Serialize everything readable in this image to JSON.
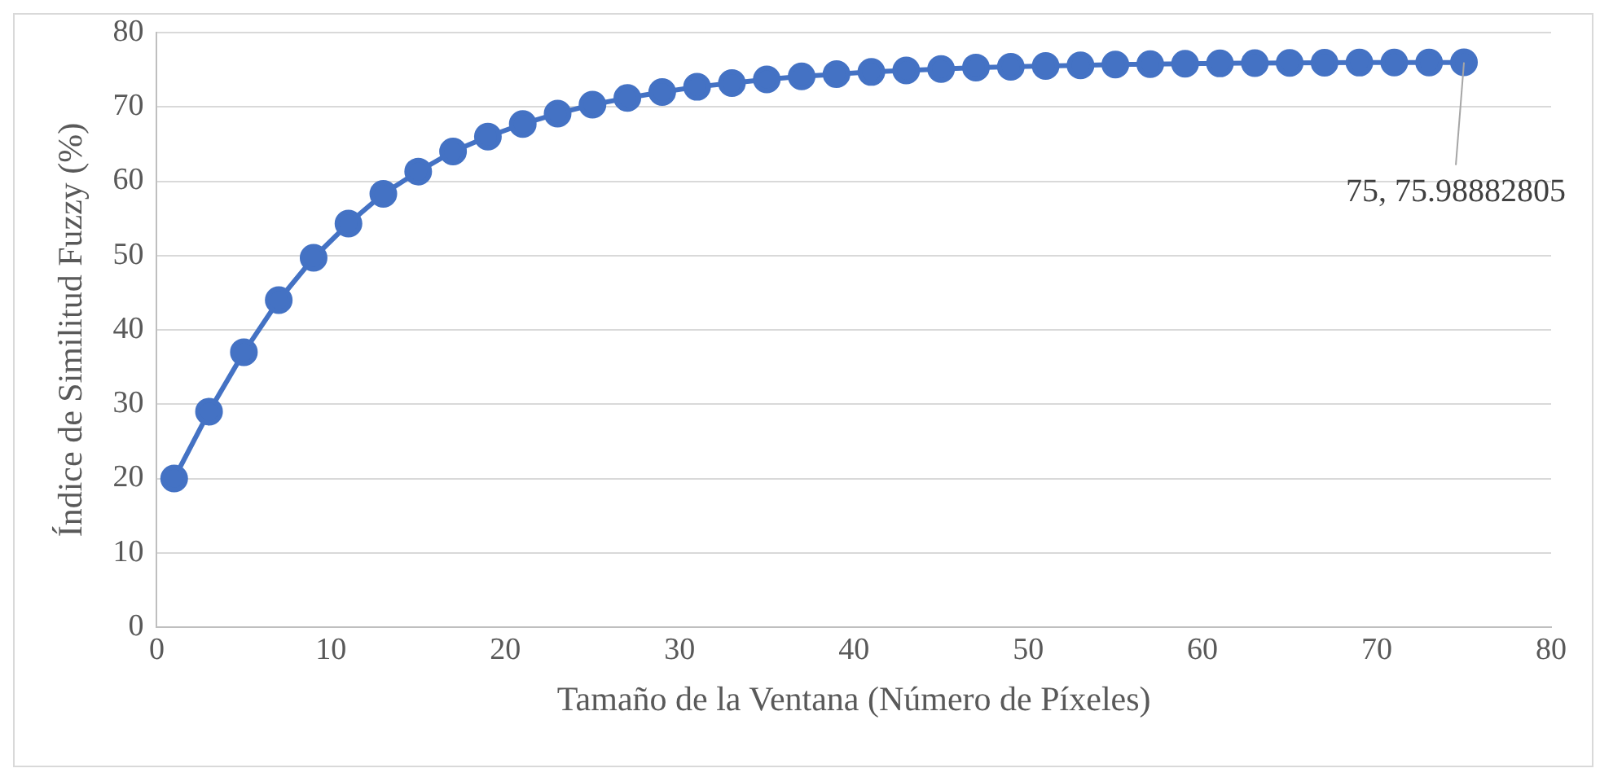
{
  "chart_data": {
    "type": "line",
    "xlabel": "Tamaño de la Ventana (Número de Píxeles)",
    "ylabel": "Índice de Similitud Fuzzy (%)",
    "x": [
      1,
      3,
      5,
      7,
      9,
      11,
      13,
      15,
      17,
      19,
      21,
      23,
      25,
      27,
      29,
      31,
      33,
      35,
      37,
      39,
      41,
      43,
      45,
      47,
      49,
      51,
      53,
      55,
      57,
      59,
      61,
      63,
      65,
      67,
      69,
      71,
      73,
      75
    ],
    "series": [
      {
        "color": "#4472c4",
        "values": [
          20,
          29,
          37,
          44,
          49.7,
          54.3,
          58.3,
          61.3,
          64,
          66,
          67.7,
          69.1,
          70.3,
          71.2,
          72,
          72.7,
          73.2,
          73.7,
          74.1,
          74.4,
          74.7,
          74.9,
          75.1,
          75.3,
          75.4,
          75.5,
          75.6,
          75.7,
          75.75,
          75.8,
          75.85,
          75.9,
          75.92,
          75.94,
          75.96,
          75.97,
          75.98,
          75.98882805
        ]
      }
    ],
    "xlim": [
      0,
      80
    ],
    "xticks": [
      0,
      10,
      20,
      30,
      40,
      50,
      60,
      70,
      80
    ],
    "ylim": [
      0,
      80
    ],
    "yticks": [
      0,
      10,
      20,
      30,
      40,
      50,
      60,
      70,
      80
    ],
    "grid": "y",
    "marker": "circle",
    "line_style": "solid",
    "legend": false,
    "annotations": [
      {
        "text": "75, 75.98882805",
        "x": 75,
        "y": 75.98882805
      }
    ]
  }
}
